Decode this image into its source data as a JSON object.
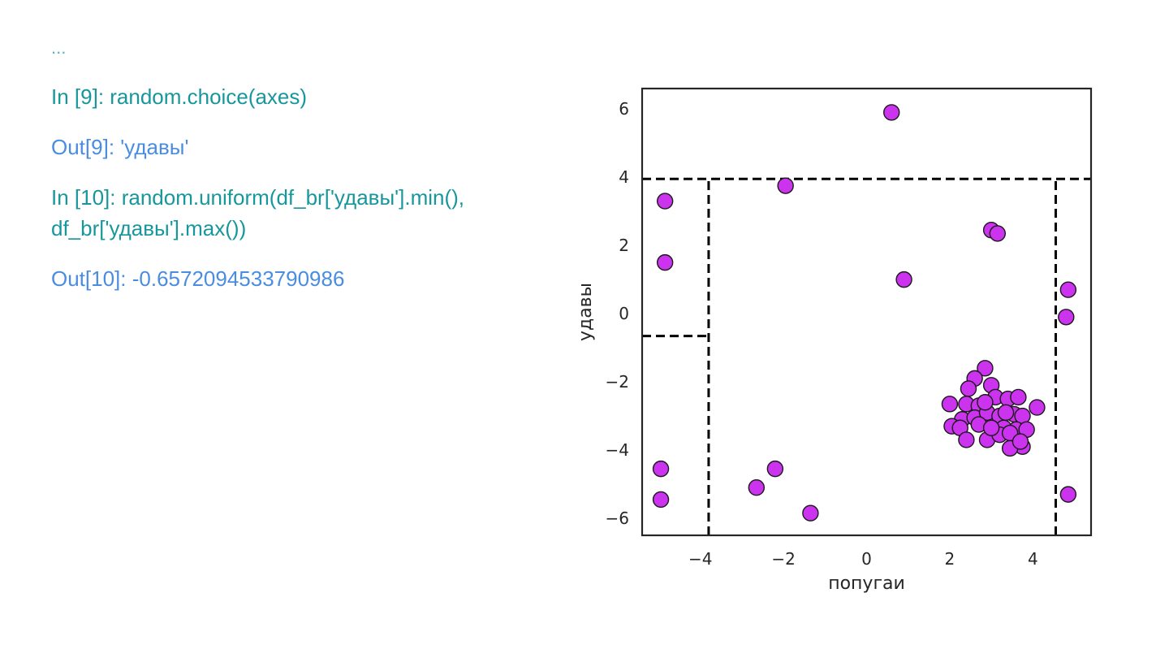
{
  "code": {
    "ellipsis": "...",
    "in9": "In [9]: random.choice(axes)",
    "out9": "Out[9]: 'удавы'",
    "in10_line1": "In [10]: random.uniform(df_br['удавы'].min(),",
    "in10_line2": "df_br['удавы'].max())",
    "out10": "Out[10]: -0.6572094533790986"
  },
  "chart_data": {
    "type": "scatter",
    "title": "",
    "xlabel": "попугаи",
    "ylabel": "удавы",
    "xlim": [
      -5.4,
      5.4
    ],
    "ylim": [
      -6.5,
      6.6
    ],
    "xticks": [
      -4,
      -2,
      0,
      2,
      4
    ],
    "xtick_labels": [
      "−4",
      "−2",
      "0",
      "2",
      "4"
    ],
    "yticks": [
      -6,
      -4,
      -2,
      0,
      2,
      4,
      6
    ],
    "ytick_labels": [
      "−6",
      "−4",
      "−2",
      "0",
      "2",
      "4",
      "6"
    ],
    "grid": false,
    "marker_color": "#cc33ee",
    "marker_edge": "#1a1a1a",
    "split_lines": [
      {
        "orientation": "horizontal",
        "y": 3.95,
        "x_from": -5.4,
        "x_to": 5.4
      },
      {
        "orientation": "vertical",
        "x": -3.8,
        "y_from": -6.5,
        "y_to": 3.95
      },
      {
        "orientation": "vertical",
        "x": 4.55,
        "y_from": -6.5,
        "y_to": 3.95
      },
      {
        "orientation": "horizontal",
        "y": -0.657,
        "x_from": -5.4,
        "x_to": -3.8
      }
    ],
    "points": [
      [
        0.6,
        5.9
      ],
      [
        -1.95,
        3.75
      ],
      [
        -4.85,
        3.3
      ],
      [
        -4.85,
        1.5
      ],
      [
        3.0,
        2.45
      ],
      [
        3.15,
        2.35
      ],
      [
        0.9,
        1.0
      ],
      [
        4.85,
        0.7
      ],
      [
        4.8,
        -0.1
      ],
      [
        -4.95,
        -4.55
      ],
      [
        -4.95,
        -5.45
      ],
      [
        -2.2,
        -4.55
      ],
      [
        -2.65,
        -5.1
      ],
      [
        -1.35,
        -5.85
      ],
      [
        4.85,
        -5.3
      ],
      [
        2.85,
        -1.6
      ],
      [
        2.6,
        -1.9
      ],
      [
        2.45,
        -2.2
      ],
      [
        3.0,
        -2.1
      ],
      [
        2.0,
        -2.65
      ],
      [
        2.4,
        -2.65
      ],
      [
        2.7,
        -2.7
      ],
      [
        3.1,
        -2.45
      ],
      [
        3.4,
        -2.5
      ],
      [
        3.65,
        -2.45
      ],
      [
        4.1,
        -2.75
      ],
      [
        2.3,
        -3.1
      ],
      [
        2.6,
        -3.05
      ],
      [
        2.9,
        -2.9
      ],
      [
        3.2,
        -3.0
      ],
      [
        3.55,
        -2.95
      ],
      [
        3.75,
        -3.0
      ],
      [
        2.05,
        -3.3
      ],
      [
        2.25,
        -3.35
      ],
      [
        2.7,
        -3.25
      ],
      [
        3.05,
        -3.4
      ],
      [
        3.3,
        -3.35
      ],
      [
        3.6,
        -3.4
      ],
      [
        3.85,
        -3.4
      ],
      [
        2.4,
        -3.7
      ],
      [
        2.9,
        -3.7
      ],
      [
        3.2,
        -3.55
      ],
      [
        3.45,
        -3.5
      ],
      [
        3.75,
        -3.9
      ],
      [
        3.45,
        -3.95
      ],
      [
        3.7,
        -3.75
      ],
      [
        2.85,
        -2.6
      ],
      [
        3.0,
        -3.35
      ],
      [
        3.35,
        -2.9
      ]
    ]
  }
}
